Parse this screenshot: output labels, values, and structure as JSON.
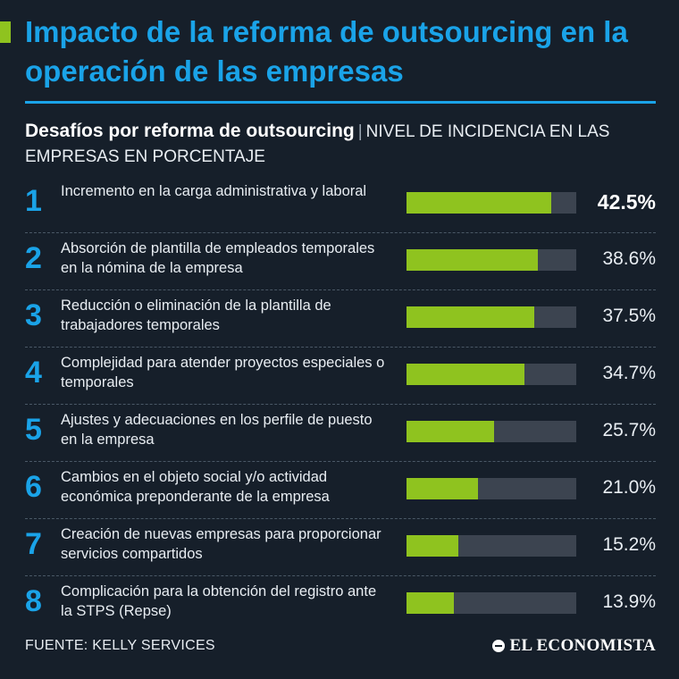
{
  "header": {
    "title": "Impacto de la reforma de outsourcing en la operación de las empresas",
    "subtitle_strong": "Desafíos por reforma de outsourcing",
    "subtitle_separator": "|",
    "subtitle_rest": "NIVEL DE INCIDENCIA EN LAS EMPRESAS EN PORCENTAJE"
  },
  "colors": {
    "background": "#161f2a",
    "accent_blue": "#1aa3e8",
    "bar_fill": "#8fc31f",
    "bar_track": "#3c4450"
  },
  "chart_data": {
    "type": "bar",
    "orientation": "horizontal",
    "xlim": [
      0,
      50
    ],
    "ranks": [
      "1",
      "2",
      "3",
      "4",
      "5",
      "6",
      "7",
      "8"
    ],
    "categories": [
      "Incremento en la carga administrativa y laboral",
      "Absorción de plantilla de empleados temporales en la nómina de la empresa",
      "Reducción o eliminación de la plantilla de trabajadores temporales",
      "Complejidad para atender proyectos especiales o temporales",
      "Ajustes y adecuaciones en los perfile de puesto en la empresa",
      "Cambios en el objeto social y/o actividad económica preponderante de la empresa",
      "Creación de nuevas empresas para proporcionar servicios compartidos",
      "Complicación para la obtención del registro ante la STPS (Repse)"
    ],
    "values": [
      42.5,
      38.6,
      37.5,
      34.7,
      25.7,
      21.0,
      15.2,
      13.9
    ],
    "value_labels": [
      "42.5%",
      "38.6%",
      "37.5%",
      "34.7%",
      "25.7%",
      "21.0%",
      "15.2%",
      "13.9%"
    ]
  },
  "footer": {
    "source": "FUENTE: KELLY SERVICES",
    "brand": "EL ECONOMISTA"
  }
}
